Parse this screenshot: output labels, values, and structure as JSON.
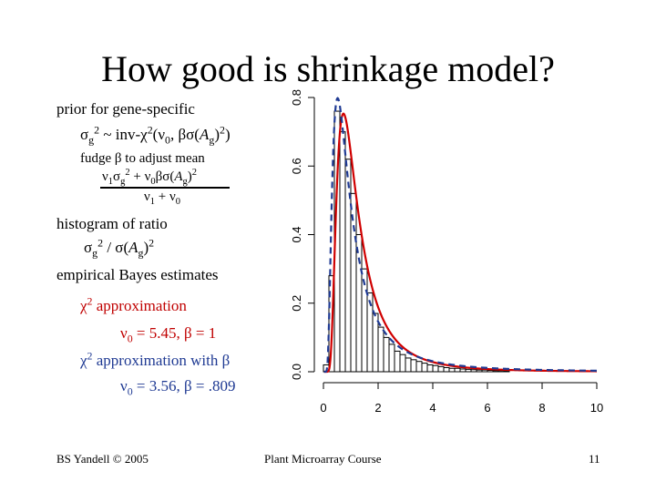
{
  "slide": {
    "title": "How good is shrinkage model?",
    "prior": {
      "line1": "prior for gene-specific",
      "line2": "σg2 ~ inv-χ2(ν0, βσ(Ag)2)",
      "line3": "fudge β to adjust mean",
      "numerator": "ν1σg2 + ν0βσ(Ag)2",
      "denominator": "ν1 + ν0"
    },
    "histogram": {
      "line1": "histogram of ratio",
      "line2": "σg2 / σ(Ag)2",
      "line3": "empirical Bayes estimates"
    },
    "approx1": {
      "label": "χ2 approximation",
      "params": "ν0 = 5.45, β = 1"
    },
    "approx2": {
      "label": "χ2 approximation with β",
      "params": "ν0 = 3.56, β = .809"
    },
    "footer": {
      "left": "BS Yandell © 2005",
      "center": "Plant Microarray Course",
      "right": "11"
    }
  },
  "colors": {
    "approx1": "#d00000",
    "approx2": "#1f3a93",
    "histogram": "#000000"
  },
  "chart_data": {
    "type": "bar",
    "xlim": [
      0,
      10
    ],
    "ylim": [
      0,
      0.8
    ],
    "x_ticks": [
      "0",
      "2",
      "4",
      "6",
      "8",
      "10"
    ],
    "y_ticks": [
      "0.0",
      "0.2",
      "0.4",
      "0.6",
      "0.8"
    ],
    "bin_width": 0.2,
    "bins_start": [
      0.0,
      0.2,
      0.4,
      0.6,
      0.8,
      1.0,
      1.2,
      1.4,
      1.6,
      1.8,
      2.0,
      2.2,
      2.4,
      2.6,
      2.8,
      3.0,
      3.2,
      3.4,
      3.6,
      3.8,
      4.0,
      4.2,
      4.4,
      4.6,
      4.8,
      5.0,
      5.2,
      5.4,
      5.6,
      5.8,
      6.0,
      6.2,
      6.4,
      6.6
    ],
    "density": [
      0.02,
      0.28,
      0.76,
      0.7,
      0.62,
      0.52,
      0.4,
      0.3,
      0.23,
      0.17,
      0.13,
      0.1,
      0.08,
      0.06,
      0.05,
      0.04,
      0.035,
      0.03,
      0.025,
      0.02,
      0.018,
      0.015,
      0.012,
      0.01,
      0.01,
      0.008,
      0.007,
      0.006,
      0.005,
      0.005,
      0.004,
      0.003,
      0.003,
      0.002
    ],
    "series": [
      {
        "name": "χ2 approximation",
        "nu0": 5.45,
        "beta": 1
      },
      {
        "name": "χ2 approximation with β",
        "nu0": 3.56,
        "beta": 0.809
      }
    ],
    "grid": false
  }
}
